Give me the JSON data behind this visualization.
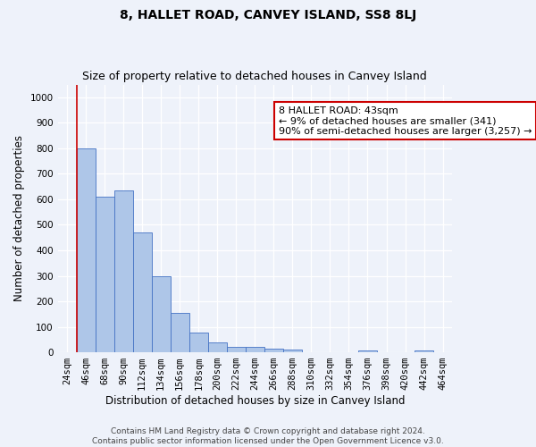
{
  "title": "8, HALLET ROAD, CANVEY ISLAND, SS8 8LJ",
  "subtitle": "Size of property relative to detached houses in Canvey Island",
  "xlabel": "Distribution of detached houses by size in Canvey Island",
  "ylabel": "Number of detached properties",
  "footer_line1": "Contains HM Land Registry data © Crown copyright and database right 2024.",
  "footer_line2": "Contains public sector information licensed under the Open Government Licence v3.0.",
  "categories": [
    "24sqm",
    "46sqm",
    "68sqm",
    "90sqm",
    "112sqm",
    "134sqm",
    "156sqm",
    "178sqm",
    "200sqm",
    "222sqm",
    "244sqm",
    "266sqm",
    "288sqm",
    "310sqm",
    "332sqm",
    "354sqm",
    "376sqm",
    "398sqm",
    "420sqm",
    "442sqm",
    "464sqm"
  ],
  "values": [
    0,
    800,
    610,
    635,
    470,
    300,
    155,
    78,
    40,
    22,
    22,
    16,
    11,
    0,
    0,
    0,
    8,
    0,
    0,
    8,
    0
  ],
  "bar_color": "#aec6e8",
  "bar_edge_color": "#4472c4",
  "property_label": "8 HALLET ROAD: 43sqm",
  "pct_smaller": "9%",
  "n_smaller": 341,
  "pct_larger_semi": "90%",
  "n_larger_semi": "3,257",
  "annotation_box_edge": "#cc0000",
  "vline_color": "#cc0000",
  "ylim": [
    0,
    1050
  ],
  "yticks": [
    0,
    100,
    200,
    300,
    400,
    500,
    600,
    700,
    800,
    900,
    1000
  ],
  "bg_color": "#eef2fa",
  "grid_color": "#ffffff",
  "title_fontsize": 10,
  "subtitle_fontsize": 9,
  "axis_label_fontsize": 8.5,
  "tick_fontsize": 7.5,
  "footer_fontsize": 6.5
}
